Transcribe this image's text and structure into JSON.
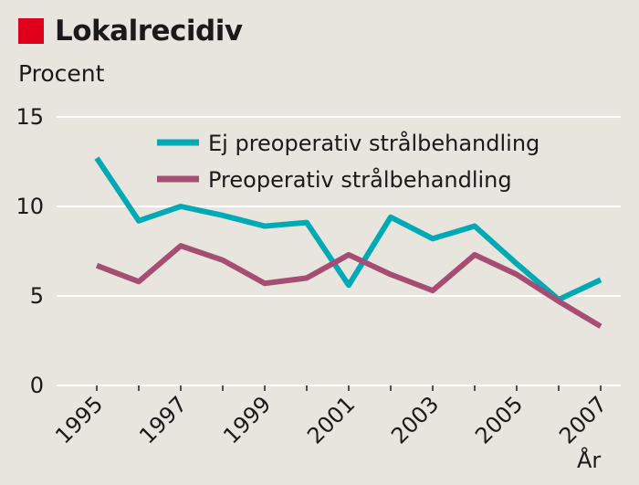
{
  "title": "Lokalrecidiv",
  "colors": {
    "title_mark": "#e0001b",
    "background": "#e8e4de",
    "grid": "#ffffff"
  },
  "chart_data": {
    "type": "line",
    "title": "Lokalrecidiv",
    "ylabel": "Procent",
    "xlabel": "År",
    "x": [
      1995,
      1996,
      1997,
      1998,
      1999,
      2000,
      2001,
      2002,
      2003,
      2004,
      2005,
      2006,
      2007
    ],
    "x_tick_labels": [
      "1995",
      "1997",
      "1999",
      "2001",
      "2003",
      "2005",
      "2007"
    ],
    "x_tick_values": [
      1995,
      1997,
      1999,
      2001,
      2003,
      2005,
      2007
    ],
    "ylim": [
      0,
      15
    ],
    "y_ticks": [
      0,
      5,
      10,
      15
    ],
    "y_tick_labels": [
      "0",
      "5",
      "10",
      "15"
    ],
    "grid": true,
    "legend_position": "top-right",
    "series": [
      {
        "name": "Ej preoperativ strålbehandling",
        "color": "#00aab4",
        "values": [
          12.7,
          9.2,
          10.0,
          9.5,
          8.9,
          9.1,
          5.6,
          9.4,
          8.2,
          8.9,
          6.8,
          4.8,
          5.9
        ]
      },
      {
        "name": "Preoperativ strålbehandling",
        "color": "#a64d73",
        "values": [
          6.7,
          5.8,
          7.8,
          7.0,
          5.7,
          6.0,
          7.3,
          6.2,
          5.3,
          7.3,
          6.2,
          4.7,
          3.3
        ]
      }
    ]
  }
}
